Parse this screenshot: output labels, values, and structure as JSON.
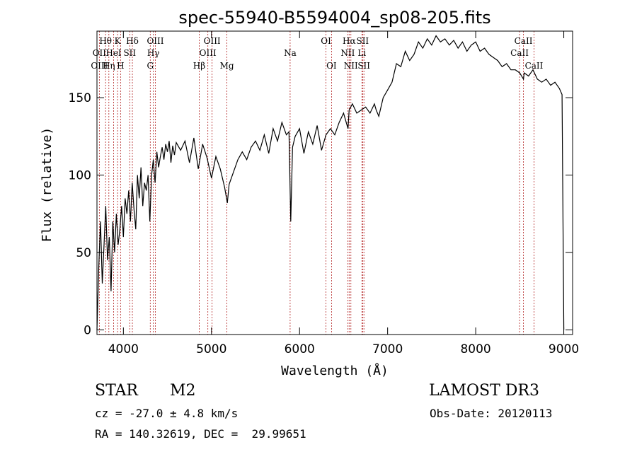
{
  "chart_data": {
    "type": "line",
    "title": "spec-55940-B5594004_sp08-205.fits",
    "xlabel": "Wavelength (Å)",
    "ylabel": "Flux (relative)",
    "xlim": [
      3700,
      9100
    ],
    "ylim": [
      -3,
      193
    ],
    "xticks": [
      4000,
      5000,
      6000,
      7000,
      8000,
      9000
    ],
    "yticks": [
      0,
      50,
      100,
      150
    ],
    "series": [
      {
        "name": "flux",
        "x": [
          3700,
          3720,
          3740,
          3760,
          3780,
          3800,
          3820,
          3840,
          3860,
          3880,
          3900,
          3920,
          3940,
          3960,
          3980,
          4000,
          4020,
          4040,
          4060,
          4080,
          4100,
          4120,
          4140,
          4160,
          4180,
          4200,
          4220,
          4240,
          4260,
          4280,
          4300,
          4320,
          4340,
          4360,
          4380,
          4400,
          4420,
          4440,
          4460,
          4480,
          4500,
          4520,
          4540,
          4560,
          4580,
          4600,
          4650,
          4700,
          4750,
          4800,
          4850,
          4900,
          4950,
          5000,
          5050,
          5100,
          5150,
          5180,
          5200,
          5250,
          5300,
          5350,
          5400,
          5450,
          5500,
          5550,
          5600,
          5650,
          5700,
          5750,
          5800,
          5850,
          5880,
          5900,
          5920,
          5950,
          6000,
          6050,
          6100,
          6150,
          6200,
          6250,
          6300,
          6350,
          6400,
          6450,
          6500,
          6550,
          6563,
          6600,
          6650,
          6700,
          6750,
          6800,
          6850,
          6870,
          6900,
          6950,
          7000,
          7050,
          7100,
          7150,
          7200,
          7250,
          7300,
          7350,
          7400,
          7450,
          7500,
          7550,
          7600,
          7650,
          7700,
          7750,
          7800,
          7850,
          7900,
          7950,
          8000,
          8050,
          8100,
          8150,
          8200,
          8250,
          8300,
          8350,
          8400,
          8450,
          8500,
          8542,
          8550,
          8600,
          8650,
          8700,
          8750,
          8800,
          8850,
          8900,
          8950,
          8980,
          9000
        ],
        "y": [
          0,
          40,
          70,
          30,
          55,
          80,
          45,
          60,
          25,
          70,
          50,
          75,
          55,
          65,
          80,
          60,
          85,
          75,
          90,
          70,
          95,
          78,
          65,
          100,
          85,
          105,
          80,
          95,
          90,
          100,
          70,
          100,
          110,
          95,
          115,
          105,
          112,
          118,
          110,
          120,
          115,
          122,
          108,
          119,
          113,
          121,
          116,
          122,
          108,
          124,
          104,
          120,
          111,
          98,
          112,
          104,
          92,
          82,
          94,
          102,
          110,
          115,
          110,
          118,
          122,
          116,
          126,
          114,
          130,
          122,
          134,
          126,
          128,
          70,
          118,
          125,
          130,
          114,
          128,
          120,
          132,
          116,
          126,
          130,
          126,
          134,
          140,
          130,
          142,
          146,
          140,
          142,
          144,
          140,
          146,
          142,
          138,
          150,
          155,
          160,
          172,
          170,
          180,
          174,
          178,
          186,
          182,
          188,
          184,
          190,
          186,
          188,
          184,
          187,
          182,
          186,
          180,
          184,
          186,
          180,
          182,
          178,
          176,
          174,
          170,
          172,
          168,
          168,
          166,
          162,
          166,
          164,
          168,
          162,
          160,
          162,
          158,
          160,
          156,
          152,
          0
        ]
      }
    ],
    "lines": [
      {
        "name": "Hθ",
        "wl": 3798,
        "row": 0
      },
      {
        "name": "OII",
        "wl": 3727,
        "row": 1
      },
      {
        "name": "OIII",
        "wl": 3727,
        "row": 2
      },
      {
        "name": "K",
        "wl": 3934,
        "row": 0
      },
      {
        "name": "HeI",
        "wl": 3889,
        "row": 1
      },
      {
        "name": "Hη",
        "wl": 3835,
        "row": 2
      },
      {
        "name": "SII",
        "wl": 4072,
        "row": 1
      },
      {
        "name": "H",
        "wl": 3968,
        "row": 2
      },
      {
        "name": "Hδ",
        "wl": 4102,
        "row": 0
      },
      {
        "name": "OIII",
        "wl": 4363,
        "row": 0
      },
      {
        "name": "Hγ",
        "wl": 4340,
        "row": 1
      },
      {
        "name": "G",
        "wl": 4305,
        "row": 2
      },
      {
        "name": "OIII",
        "wl": 5007,
        "row": 0
      },
      {
        "name": "OIII",
        "wl": 4959,
        "row": 1
      },
      {
        "name": "Hβ",
        "wl": 4861,
        "row": 2
      },
      {
        "name": "Mg",
        "wl": 5175,
        "row": 2
      },
      {
        "name": "Na",
        "wl": 5893,
        "row": 1
      },
      {
        "name": "OI",
        "wl": 6300,
        "row": 0
      },
      {
        "name": "OI",
        "wl": 6363,
        "row": 2
      },
      {
        "name": "Hα",
        "wl": 6563,
        "row": 0
      },
      {
        "name": "NII",
        "wl": 6548,
        "row": 1
      },
      {
        "name": "NII",
        "wl": 6583,
        "row": 2
      },
      {
        "name": "SII",
        "wl": 6716,
        "row": 0
      },
      {
        "name": "Li",
        "wl": 6708,
        "row": 1
      },
      {
        "name": "SII",
        "wl": 6731,
        "row": 2
      },
      {
        "name": "CaII",
        "wl": 8542,
        "row": 0
      },
      {
        "name": "CaII",
        "wl": 8498,
        "row": 1
      },
      {
        "name": "CaII",
        "wl": 8662,
        "row": 2
      }
    ]
  },
  "info": {
    "class": "STAR",
    "subclass": "M2",
    "survey": "LAMOST DR3",
    "cz": "cz = -27.0 ± 4.8 km/s",
    "obs_date": "Obs-Date: 20120113",
    "radec": "RA = 140.32619, DEC =  29.99651"
  },
  "colors": {
    "line_marker": "#b22222",
    "spectrum": "#000000"
  }
}
